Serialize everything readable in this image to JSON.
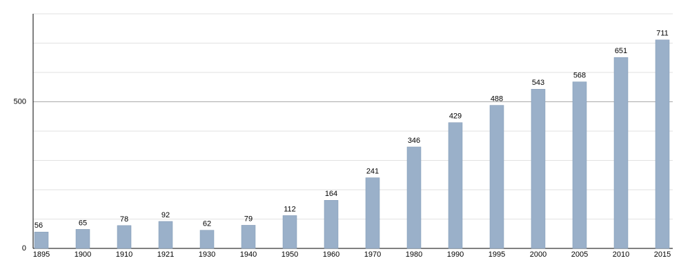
{
  "chart_data": {
    "type": "bar",
    "categories": [
      "1895",
      "1900",
      "1910",
      "1921",
      "1930",
      "1940",
      "1950",
      "1960",
      "1970",
      "1980",
      "1990",
      "1995",
      "2000",
      "2005",
      "2010",
      "2015"
    ],
    "values": [
      56,
      65,
      78,
      92,
      62,
      79,
      112,
      164,
      241,
      346,
      429,
      488,
      543,
      568,
      651,
      711
    ],
    "color": "#9ab0c9",
    "ylim": [
      0,
      800
    ],
    "yticks": [
      0,
      500
    ],
    "minor_gridlines": [
      100,
      200,
      300,
      400,
      600,
      700,
      800
    ],
    "grid": true
  }
}
